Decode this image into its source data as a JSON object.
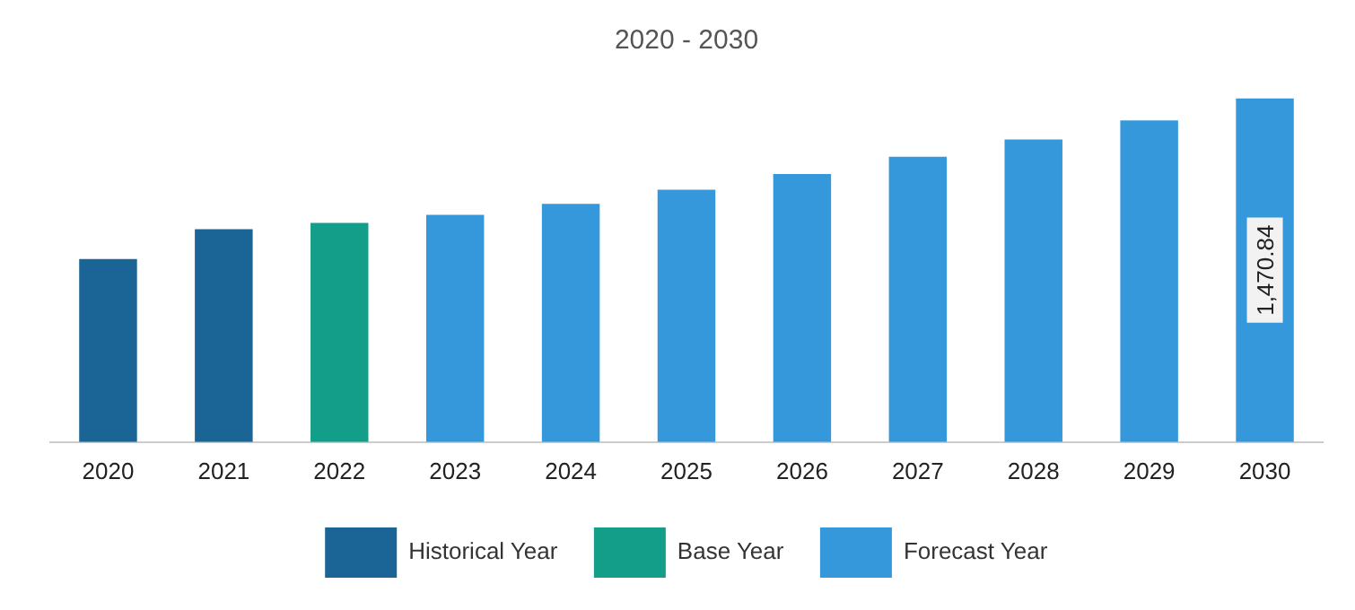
{
  "chart_data": {
    "type": "bar",
    "title": "2020 - 2030",
    "categories": [
      "2020",
      "2021",
      "2022",
      "2023",
      "2024",
      "2025",
      "2026",
      "2027",
      "2028",
      "2029",
      "2030"
    ],
    "series": [
      {
        "name": "Historical Year",
        "color": "#1a6496",
        "values": [
          783,
          911,
          null,
          null,
          null,
          null,
          null,
          null,
          null,
          null,
          null
        ]
      },
      {
        "name": "Base Year",
        "color": "#139e8a",
        "values": [
          null,
          null,
          938,
          null,
          null,
          null,
          null,
          null,
          null,
          null,
          null
        ]
      },
      {
        "name": "Forecast Year",
        "color": "#3498db",
        "values": [
          null,
          null,
          null,
          972,
          1019,
          1080,
          1147,
          1221,
          1295,
          1376,
          1470.84
        ],
        "value_labels": [
          null,
          null,
          null,
          null,
          null,
          null,
          null,
          null,
          null,
          null,
          "1,470.84"
        ]
      }
    ],
    "legend": "bottom",
    "grid": false
  }
}
